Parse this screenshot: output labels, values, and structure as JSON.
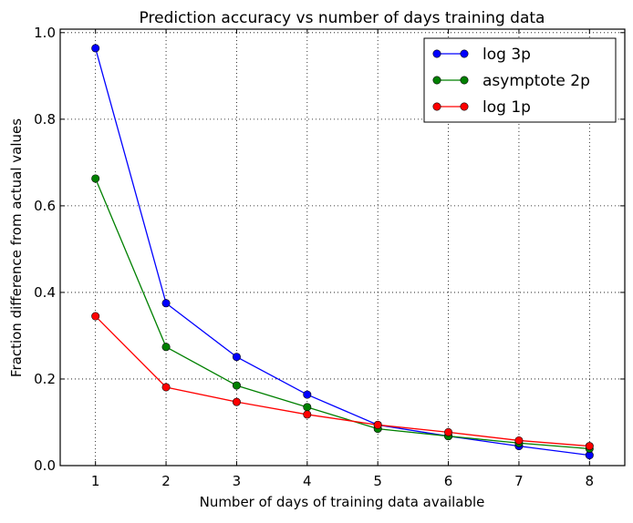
{
  "chart_data": {
    "type": "line",
    "title": "Prediction accuracy vs number of days training data",
    "xlabel": "Number of days of training data available",
    "ylabel": "Fraction difference from actual values",
    "xlim": [
      0.5,
      8.5
    ],
    "ylim": [
      0,
      1.008
    ],
    "grid": true,
    "legend_position": "top-right",
    "x": [
      1,
      2,
      3,
      4,
      5,
      6,
      7,
      8
    ],
    "x_ticks": [
      "1",
      "2",
      "3",
      "4",
      "5",
      "6",
      "7",
      "8"
    ],
    "y_ticks": [
      {
        "value": 0.0,
        "label": "0.0"
      },
      {
        "value": 0.2,
        "label": "0.2"
      },
      {
        "value": 0.4,
        "label": "0.4"
      },
      {
        "value": 0.6,
        "label": "0.6"
      },
      {
        "value": 0.8,
        "label": "0.8"
      },
      {
        "value": 1.0,
        "label": "1.0"
      }
    ],
    "series": [
      {
        "name": "log 3p",
        "color": "#0000ff",
        "values": [
          0.964,
          0.375,
          0.251,
          0.164,
          0.094,
          0.068,
          0.045,
          0.024
        ]
      },
      {
        "name": "asymptote 2p",
        "color": "#008000",
        "values": [
          0.663,
          0.274,
          0.185,
          0.135,
          0.085,
          0.068,
          0.052,
          0.039
        ]
      },
      {
        "name": "log 1p",
        "color": "#ff0000",
        "values": [
          0.345,
          0.181,
          0.147,
          0.118,
          0.094,
          0.077,
          0.058,
          0.045
        ]
      }
    ]
  }
}
